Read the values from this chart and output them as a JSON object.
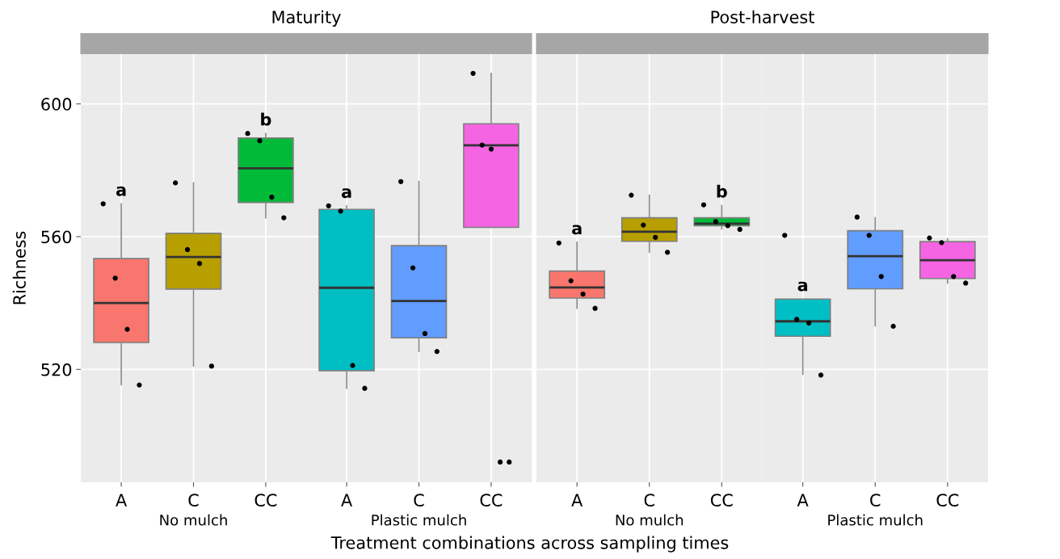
{
  "chart_data": [
    {
      "type": "box",
      "title": "Maturity",
      "ylabel": "Richness",
      "xlabel": "No mulch",
      "categories": [
        "A",
        "C",
        "CC"
      ],
      "colors": [
        "#f8766d",
        "#b79f00",
        "#00ba38"
      ],
      "boxes": [
        {
          "low": 515.4,
          "q1": 528.1,
          "median": 540.0,
          "q3": 553.4,
          "high": 569.9
        },
        {
          "low": 521.0,
          "q1": 544.2,
          "median": 553.9,
          "q3": 561.0,
          "high": 576.2
        },
        {
          "low": 565.7,
          "q1": 570.3,
          "median": 580.6,
          "q3": 589.7,
          "high": 591.1
        }
      ],
      "series": [
        {
          "type": "scatter",
          "color": "#000000",
          "marker": "circle",
          "x": [
            "A",
            "A",
            "A",
            "A",
            "C",
            "C",
            "C",
            "C",
            "CC",
            "CC",
            "CC",
            "CC"
          ],
          "values": [
            569.9,
            547.5,
            532.1,
            515.3,
            576.2,
            556.1,
            551.9,
            521.0,
            591.1,
            588.9,
            571.9,
            565.7
          ]
        }
      ],
      "annotations": [
        {
          "text": "a",
          "x": "A",
          "y": 569.9
        },
        {
          "text": "b",
          "x": "CC",
          "y": 591.1
        },
        "Treatment combinations across sampling times"
      ],
      "ylim": [
        486,
        615
      ],
      "yticks": [
        520,
        560,
        600
      ],
      "grid": true
    },
    {
      "type": "box",
      "xlabel": "Plastic mulch",
      "categories": [
        "A",
        "C",
        "CC"
      ],
      "colors": [
        "#00bfc4",
        "#619cff",
        "#f564e3"
      ],
      "boxes": [
        {
          "low": 514.3,
          "q1": 519.6,
          "median": 544.6,
          "q3": 568.2,
          "high": 569.3
        },
        {
          "low": 525.4,
          "q1": 529.5,
          "median": 540.6,
          "q3": 557.3,
          "high": 576.6
        },
        {
          "low": 562.8,
          "q1": 562.8,
          "median": 587.5,
          "q3": 594.0,
          "high": 609.2
        }
      ],
      "series": [
        {
          "type": "scatter",
          "color": "#000000",
          "marker": "circle",
          "x": [
            "A",
            "A",
            "A",
            "A",
            "C",
            "C",
            "C",
            "C",
            "CC",
            "CC",
            "CC",
            "CC",
            "CC"
          ],
          "values": [
            569.3,
            567.7,
            521.2,
            514.3,
            576.6,
            550.6,
            530.8,
            525.4,
            609.2,
            587.6,
            586.4,
            492.1,
            492.1
          ]
        }
      ],
      "annotations": [
        {
          "text": "a",
          "x": "A",
          "y": 569.3
        }
      ],
      "ylim": [
        486,
        615
      ],
      "yticks": [
        520,
        560,
        600
      ],
      "grid": true,
      "tick_labels": "x"
    },
    {
      "type": "box",
      "title": "Post-harvest",
      "xlabel": "No mulch",
      "categories": [
        "A",
        "C",
        "CC"
      ],
      "colors": [
        "#f8766d",
        "#b79f00",
        "#00ba38"
      ],
      "boxes": [
        {
          "low": 538.4,
          "q1": 541.5,
          "median": 544.7,
          "q3": 549.6,
          "high": 558.3
        },
        {
          "low": 555.3,
          "q1": 558.6,
          "median": 561.5,
          "q3": 565.7,
          "high": 572.5
        },
        {
          "low": 562.3,
          "q1": 563.3,
          "median": 563.9,
          "q3": 565.7,
          "high": 569.4
        }
      ],
      "series": [
        {
          "type": "scatter",
          "color": "#000000",
          "marker": "circle",
          "x": [
            "A",
            "A",
            "A",
            "A",
            "C",
            "C",
            "C",
            "C",
            "CC",
            "CC",
            "CC",
            "CC"
          ],
          "values": [
            558.1,
            546.7,
            542.7,
            538.4,
            572.5,
            563.5,
            559.8,
            555.3,
            569.6,
            564.5,
            563.3,
            562.2
          ]
        }
      ],
      "annotations": [
        {
          "text": "a",
          "x": "A",
          "y": 558.3
        },
        {
          "text": "b",
          "x": "CC",
          "y": 569.4
        }
      ],
      "ylim": [
        486,
        615
      ],
      "yticks": [
        520,
        560,
        600
      ],
      "grid": true,
      "tick_labels": "x"
    },
    {
      "type": "box",
      "xlabel": "Plastic mulch",
      "categories": [
        "A",
        "C",
        "CC"
      ],
      "colors": [
        "#00bfc4",
        "#619cff",
        "#f564e3"
      ],
      "boxes": [
        {
          "low": 518.5,
          "q1": 530.0,
          "median": 534.5,
          "q3": 541.2,
          "high": 541.2
        },
        {
          "low": 533.1,
          "q1": 544.3,
          "median": 554.1,
          "q3": 561.8,
          "high": 565.7
        },
        {
          "low": 546.0,
          "q1": 547.4,
          "median": 552.9,
          "q3": 558.5,
          "high": 559.3
        }
      ],
      "series": [
        {
          "type": "scatter",
          "color": "#000000",
          "marker": "circle",
          "x": [
            "A",
            "A",
            "A",
            "A",
            "C",
            "C",
            "C",
            "C",
            "CC",
            "CC",
            "CC",
            "CC"
          ],
          "values": [
            560.4,
            535.1,
            534.0,
            518.3,
            565.9,
            560.4,
            548.0,
            533.0,
            559.6,
            558.2,
            548.0,
            546.0
          ]
        }
      ],
      "annotations": [
        {
          "text": "a",
          "x": "A",
          "y": 541.2
        }
      ],
      "ylim": [
        486,
        615
      ],
      "yticks": [
        520,
        560,
        600
      ],
      "grid": true,
      "tick_labels": "x"
    }
  ]
}
